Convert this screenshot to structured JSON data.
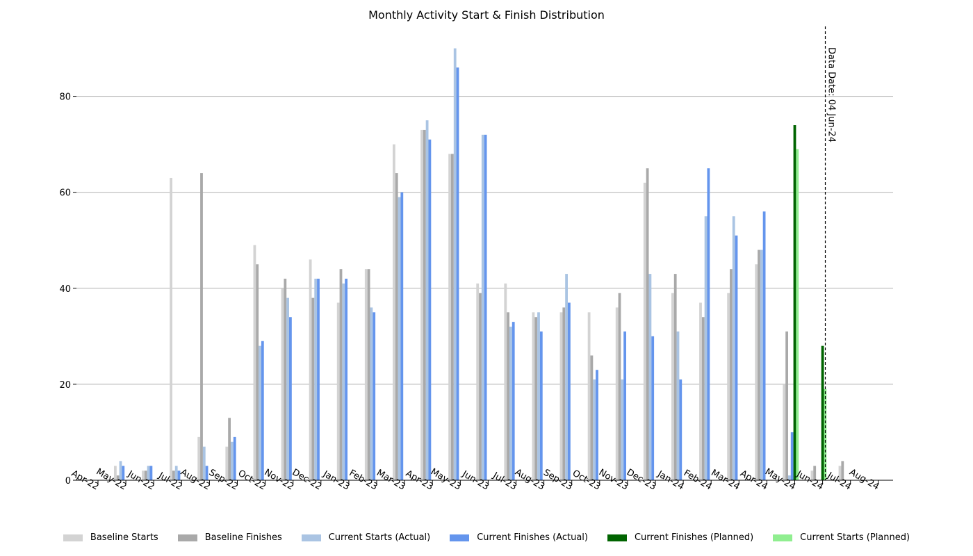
{
  "chart_data": {
    "type": "bar",
    "title": "Monthly Activity Start & Finish Distribution",
    "xlabel": "",
    "ylabel": "",
    "ylim": [
      0,
      94
    ],
    "yticks": [
      0,
      20,
      40,
      60,
      80
    ],
    "grid": "horizontal",
    "legend_position": "bottom",
    "categories": [
      "Apr-22",
      "May-22",
      "Jun-22",
      "Jul-22",
      "Aug-22",
      "Sep-22",
      "Oct-22",
      "Nov-22",
      "Dec-22",
      "Jan-23",
      "Feb-23",
      "Mar-23",
      "Apr-23",
      "May-23",
      "Jun-23",
      "Jul-23",
      "Aug-23",
      "Sep-23",
      "Oct-23",
      "Nov-23",
      "Dec-23",
      "Jan-24",
      "Feb-24",
      "Mar-24",
      "Apr-24",
      "May-24",
      "Jun-24",
      "Jul-24",
      "Aug-24"
    ],
    "series": [
      {
        "name": "Baseline Starts",
        "color": "#d3d3d3",
        "values": [
          0,
          3,
          2,
          63,
          9,
          7,
          49,
          40,
          46,
          37,
          44,
          70,
          73,
          68,
          41,
          41,
          35,
          35,
          35,
          36,
          62,
          39,
          37,
          39,
          45,
          20,
          2,
          3,
          0
        ]
      },
      {
        "name": "Baseline Finishes",
        "color": "#a9a9a9",
        "values": [
          0,
          1,
          2,
          2,
          64,
          13,
          45,
          42,
          38,
          44,
          44,
          64,
          73,
          68,
          39,
          35,
          34,
          36,
          26,
          39,
          65,
          43,
          34,
          44,
          48,
          31,
          3,
          4,
          0
        ]
      },
      {
        "name": "Current Starts (Actual)",
        "color": "#aac4e3",
        "values": [
          0,
          4,
          3,
          3,
          7,
          8,
          28,
          38,
          42,
          41,
          36,
          59,
          75,
          90,
          72,
          32,
          35,
          43,
          21,
          21,
          43,
          31,
          55,
          55,
          48,
          1,
          0,
          0,
          0
        ]
      },
      {
        "name": "Current Finishes (Actual)",
        "color": "#6495ed",
        "values": [
          0,
          3,
          3,
          2,
          3,
          9,
          29,
          34,
          42,
          42,
          35,
          60,
          71,
          86,
          72,
          33,
          31,
          37,
          23,
          31,
          30,
          21,
          65,
          51,
          56,
          10,
          0,
          0,
          0
        ]
      },
      {
        "name": "Current Finishes (Planned)",
        "color": "#006400",
        "values": [
          0,
          0,
          0,
          0,
          0,
          0,
          0,
          0,
          0,
          0,
          0,
          0,
          0,
          0,
          0,
          0,
          0,
          0,
          0,
          0,
          0,
          0,
          0,
          0,
          0,
          74,
          28,
          0,
          0
        ]
      },
      {
        "name": "Current Starts (Planned)",
        "color": "#90ee90",
        "values": [
          0,
          0,
          0,
          0,
          0,
          0,
          0,
          0,
          0,
          0,
          0,
          0,
          0,
          0,
          0,
          0,
          0,
          0,
          0,
          0,
          0,
          0,
          0,
          0,
          0,
          69,
          19,
          0,
          0
        ]
      }
    ],
    "annotation": {
      "text": "Data Date: 04 Jun-24",
      "category": "May-24",
      "month_fraction": 0.1
    }
  }
}
